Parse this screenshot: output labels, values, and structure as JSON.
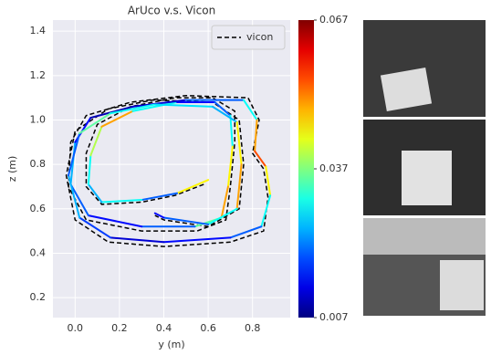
{
  "chart_data": {
    "type": "line",
    "title": "ArUco v.s. Vicon",
    "xlabel": "y (m)",
    "ylabel": "z (m)",
    "xlim": [
      -0.1,
      0.97
    ],
    "ylim": [
      0.11,
      1.45
    ],
    "xticks": [
      {
        "value": 0,
        "label": "0.0"
      },
      0.2,
      0.4,
      0.6,
      0.8
    ],
    "yticks": [
      0.2,
      0.4,
      0.6,
      0.8,
      {
        "value": 1,
        "label": "1.0"
      },
      1.2,
      1.4
    ],
    "grid": true,
    "legend": "upper right",
    "series": [
      {
        "name": "vicon",
        "color": "#000000",
        "dashed": true,
        "x": [
          0.58,
          0.45,
          0.3,
          0.12,
          0.05,
          0.05,
          0.1,
          0.25,
          0.45,
          0.62,
          0.72,
          0.72,
          0.7,
          0.68,
          0.55,
          0.3,
          0.05,
          -0.03,
          -0.02,
          0.05,
          0.25,
          0.5,
          0.78,
          0.83,
          0.8,
          0.85,
          0.87,
          0.85,
          0.7,
          0.4,
          0.15,
          0,
          -0.04,
          0,
          0.15,
          0.35,
          0.62,
          0.74,
          0.76,
          0.74,
          0.6,
          0.4,
          0.36
        ],
        "values": [
          0.71,
          0.66,
          0.63,
          0.62,
          0.7,
          0.85,
          0.98,
          1.06,
          1.1,
          1.1,
          1.04,
          0.9,
          0.7,
          0.55,
          0.5,
          0.5,
          0.55,
          0.7,
          0.9,
          1.02,
          1.08,
          1.11,
          1.1,
          1,
          0.85,
          0.78,
          0.65,
          0.5,
          0.45,
          0.43,
          0.45,
          0.55,
          0.75,
          0.95,
          1.05,
          1.09,
          1.08,
          1,
          0.8,
          0.6,
          0.52,
          0.55,
          0.57
        ]
      },
      {
        "colormap": "jet",
        "x": [
          0.6,
          0.46,
          0.3,
          0.12,
          0.06,
          0.07,
          0.12,
          0.26,
          0.46,
          0.63,
          0.7,
          0.71,
          0.69,
          0.66,
          0.54,
          0.3,
          0.06,
          -0.02,
          0,
          0.07,
          0.26,
          0.5,
          0.76,
          0.82,
          0.81,
          0.86,
          0.88,
          0.84,
          0.7,
          0.4,
          0.16,
          0.02,
          -0.03,
          0.02,
          0.16,
          0.36,
          0.62,
          0.73,
          0.75,
          0.73,
          0.6,
          0.4,
          0.36
        ],
        "values": [
          0.73,
          0.67,
          0.64,
          0.63,
          0.71,
          0.84,
          0.97,
          1.04,
          1.08,
          1.08,
          1.02,
          0.88,
          0.7,
          0.56,
          0.52,
          0.52,
          0.57,
          0.71,
          0.9,
          1.01,
          1.06,
          1.09,
          1.09,
          1,
          0.86,
          0.79,
          0.66,
          0.52,
          0.47,
          0.45,
          0.47,
          0.56,
          0.75,
          0.94,
          1.03,
          1.07,
          1.06,
          0.99,
          0.8,
          0.6,
          0.53,
          0.56,
          0.58
        ],
        "errors": [
          0.06,
          0.045,
          0.02,
          0.03,
          0.025,
          0.03,
          0.04,
          0.05,
          0.03,
          0.015,
          0.02,
          0.03,
          0.045,
          0.05,
          0.035,
          0.02,
          0.015,
          0.02,
          0.025,
          0.015,
          0.01,
          0.012,
          0.02,
          0.03,
          0.05,
          0.055,
          0.045,
          0.03,
          0.02,
          0.015,
          0.012,
          0.018,
          0.025,
          0.02,
          0.035,
          0.03,
          0.028,
          0.025,
          0.045,
          0.05,
          0.03,
          0.02,
          0.015
        ]
      }
    ],
    "colorbar": {
      "lim": [
        0.007,
        0.067
      ],
      "ticks": [
        0.007,
        0.037,
        0.067
      ]
    }
  }
}
